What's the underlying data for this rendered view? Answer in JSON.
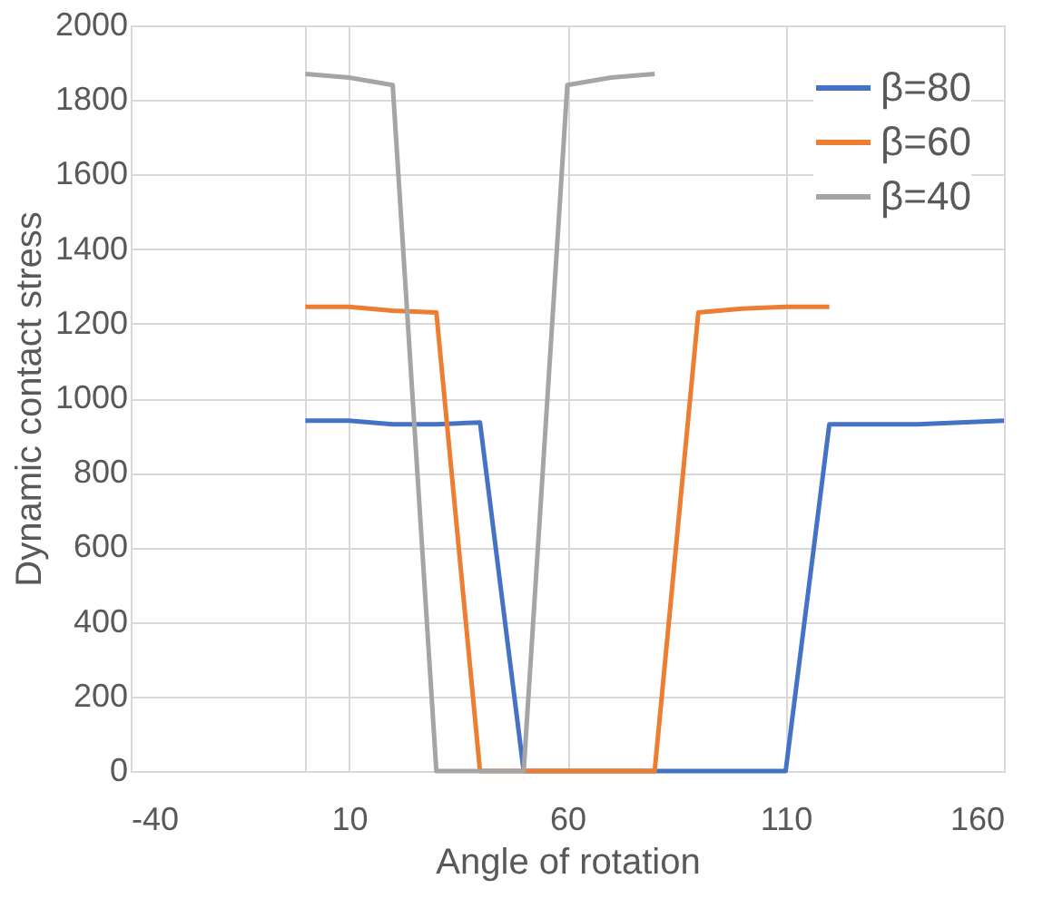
{
  "chart_data": {
    "type": "line",
    "xlabel": "Angle of rotation",
    "ylabel": "Dynamic contact stress",
    "xlim": [
      -40,
      160
    ],
    "xticks": [
      -40,
      {
        "value": 0,
        "label": null
      },
      10,
      60,
      110,
      160
    ],
    "ylim": [
      0,
      2000
    ],
    "yticks": [
      0,
      200,
      400,
      600,
      800,
      1000,
      1200,
      1400,
      1600,
      1800,
      2000
    ],
    "grid": true,
    "legend": "top right",
    "marker": "none",
    "line_style": "solid",
    "series": [
      {
        "name": "β=80",
        "color": "#4472c4",
        "x": [
          0,
          10,
          20,
          30,
          40,
          50,
          60,
          70,
          80,
          90,
          100,
          110,
          120,
          130,
          140,
          150,
          160
        ],
        "values": [
          940,
          940,
          930,
          930,
          935,
          0,
          0,
          0,
          0,
          0,
          0,
          0,
          930,
          930,
          930,
          935,
          940
        ]
      },
      {
        "name": "β=60",
        "color": "#ed7d31",
        "x": [
          0,
          10,
          20,
          30,
          40,
          50,
          60,
          70,
          80,
          90,
          100,
          110,
          120
        ],
        "values": [
          1245,
          1245,
          1235,
          1230,
          0,
          0,
          0,
          0,
          0,
          1230,
          1240,
          1245,
          1245
        ]
      },
      {
        "name": "β=40",
        "color": "#a5a5a5",
        "x": [
          0,
          10,
          20,
          30,
          40,
          50,
          60,
          70,
          80
        ],
        "values": [
          1870,
          1860,
          1840,
          0,
          0,
          0,
          1840,
          1860,
          1870
        ]
      }
    ]
  }
}
